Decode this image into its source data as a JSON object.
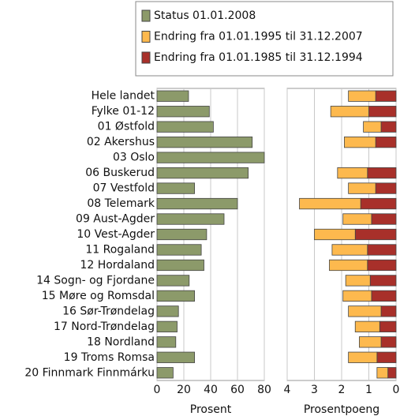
{
  "chart_data": [
    {
      "type": "bar",
      "orientation": "horizontal",
      "categories": [
        "Hele landet",
        "Fylke 01-12",
        "01 Østfold",
        "02 Akershus",
        "03 Oslo",
        "06 Buskerud",
        "07 Vestfold",
        "08 Telemark",
        "09 Aust-Agder",
        "10 Vest-Agder",
        "11 Rogaland",
        "12 Hordaland",
        "14 Sogn- og Fjordane",
        "15 Møre og Romsdal",
        "16 Sør-Trøndelag",
        "17 Nord-Trøndelag",
        "18 Nordland",
        "19 Troms Romsa",
        "20 Finnmark Finnmárku"
      ],
      "series": [
        {
          "name": "Status 01.01.2008",
          "color": "#8c9a6a",
          "values": [
            23.5,
            39,
            42,
            71,
            80,
            68,
            28,
            60,
            50,
            37,
            33,
            35,
            24,
            28,
            16,
            15,
            14,
            28,
            12
          ]
        }
      ],
      "xlim": [
        0,
        80
      ],
      "xticks": [
        0,
        20,
        40,
        60,
        80
      ],
      "xlabel": "Prosent",
      "grid": true
    },
    {
      "type": "stacked_bar",
      "orientation": "horizontal",
      "series": [
        {
          "name": "Endring fra 01.01.1995 til 31.12.2007",
          "color": "#fdb94e",
          "values": [
            1.0,
            1.4,
            0.65,
            1.15,
            0,
            1.1,
            1.0,
            2.25,
            1.05,
            1.5,
            1.3,
            1.4,
            0.9,
            1.05,
            1.2,
            0.9,
            0.8,
            1.05,
            0.4
          ]
        },
        {
          "name": "Endring fra 01.01.1985 til 31.12.1994",
          "color": "#a8302a",
          "values": [
            0.75,
            1.0,
            0.55,
            0.75,
            0,
            1.05,
            0.75,
            1.3,
            0.9,
            1.5,
            1.05,
            1.05,
            0.95,
            0.9,
            0.55,
            0.6,
            0.55,
            0.7,
            0.3
          ]
        }
      ],
      "xlim": [
        4,
        0
      ],
      "xticks": [
        4,
        3,
        2,
        1,
        0
      ],
      "xlabel": "Prosentpoeng",
      "grid": true
    }
  ]
}
